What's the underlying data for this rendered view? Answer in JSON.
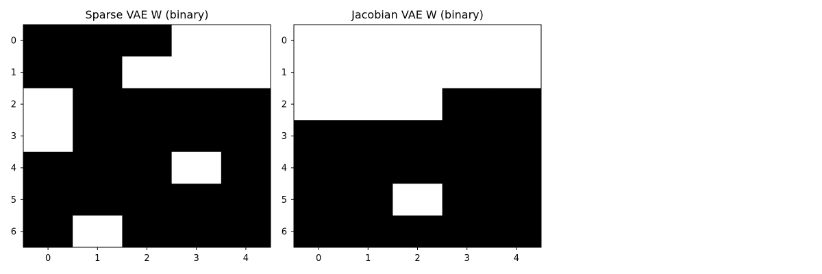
{
  "chart_data": [
    {
      "type": "heatmap",
      "title": "Sparse VAE W (binary)",
      "x": [
        0,
        1,
        2,
        3,
        4
      ],
      "y": [
        0,
        1,
        2,
        3,
        4,
        5,
        6
      ],
      "values": [
        [
          0,
          0,
          0,
          1,
          1
        ],
        [
          0,
          0,
          1,
          1,
          1
        ],
        [
          1,
          0,
          0,
          0,
          0
        ],
        [
          1,
          0,
          0,
          0,
          0
        ],
        [
          0,
          0,
          0,
          1,
          0
        ],
        [
          0,
          0,
          0,
          0,
          0
        ],
        [
          0,
          1,
          0,
          0,
          0
        ]
      ],
      "colormap": {
        "0": "#000000",
        "1": "#ffffff"
      },
      "grid": false
    },
    {
      "type": "heatmap",
      "title": "Jacobian VAE W (binary)",
      "x": [
        0,
        1,
        2,
        3,
        4
      ],
      "y": [
        0,
        1,
        2,
        3,
        4,
        5,
        6
      ],
      "values": [
        [
          1,
          1,
          1,
          1,
          1
        ],
        [
          1,
          1,
          1,
          1,
          1
        ],
        [
          1,
          1,
          1,
          0,
          0
        ],
        [
          0,
          0,
          0,
          0,
          0
        ],
        [
          0,
          0,
          0,
          0,
          0
        ],
        [
          0,
          0,
          1,
          0,
          0
        ],
        [
          0,
          0,
          0,
          0,
          0
        ]
      ],
      "colormap": {
        "0": "#000000",
        "1": "#ffffff"
      },
      "grid": false
    }
  ]
}
